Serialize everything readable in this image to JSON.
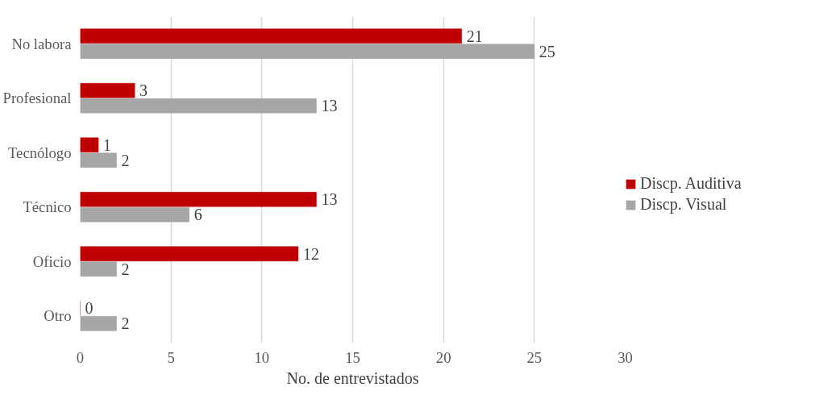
{
  "chart_data": {
    "type": "bar",
    "orientation": "horizontal",
    "xlabel": "No. de entrevistados",
    "categories": [
      "No labora",
      "Profesional",
      "Tecnólogo",
      "Técnico",
      "Oficio",
      "Otro"
    ],
    "series": [
      {
        "name": "Discp. Auditiva",
        "color": "#c00000",
        "values": [
          21,
          3,
          1,
          13,
          12,
          0
        ]
      },
      {
        "name": "Discp. Visual",
        "color": "#a6a6a6",
        "values": [
          25,
          13,
          2,
          6,
          2,
          2
        ]
      }
    ],
    "xlim": [
      0,
      30
    ],
    "xticks": [
      0,
      5,
      10,
      15,
      20,
      25,
      30
    ],
    "grid": "x",
    "legend": "right",
    "data_labels": true
  }
}
